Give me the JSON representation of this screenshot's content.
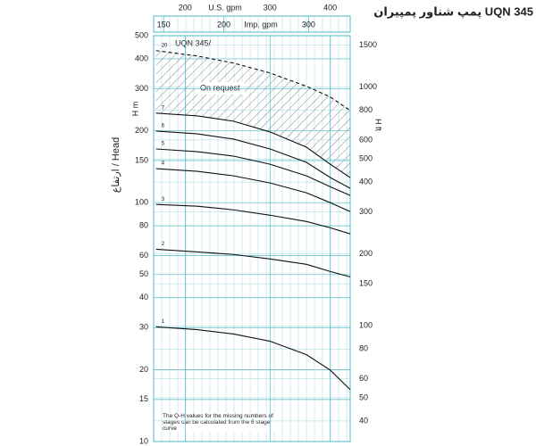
{
  "chart_data": {
    "type": "line",
    "title": "پمپ شناور پمپیران UQN 345",
    "ylabel": "ارتفاع / Head",
    "yunit": "H m",
    "y2unit": "H ft",
    "xlabel": "U.S. gpm",
    "x2label": "Imp. gpm",
    "annotations": [
      "UQN 345/",
      "On request",
      "The Q-H values for the missing numbers of stages can be calculated from the 6 stage curve"
    ],
    "xscale": "log",
    "yscale": "log",
    "grid": true,
    "xlim": [
      172,
      440
    ],
    "xticks": [
      200,
      300,
      400
    ],
    "x2lim": [
      143,
      366
    ],
    "x2ticks": [
      150,
      200,
      300
    ],
    "ylim": [
      10,
      500
    ],
    "yticks": [
      10,
      15,
      20,
      30,
      40,
      50,
      60,
      80,
      100,
      150,
      200,
      300,
      400,
      500
    ],
    "y2lim": [
      32.8,
      1640
    ],
    "y2ticks": [
      40,
      50,
      60,
      80,
      100,
      150,
      200,
      300,
      400,
      500,
      600,
      800,
      1000,
      1500
    ],
    "x": [
      174,
      212,
      252,
      300,
      357,
      400,
      440
    ],
    "series": [
      {
        "name": "1",
        "color": "#111111",
        "values": [
          30.2,
          29.4,
          28.2,
          26.3,
          23.1,
          19.9,
          16.5
        ]
      },
      {
        "name": "2",
        "color": "#111111",
        "values": [
          63.8,
          62.2,
          60.7,
          58.1,
          55.2,
          51.5,
          48.9
        ]
      },
      {
        "name": "3",
        "color": "#111111",
        "values": [
          98.3,
          96.6,
          93.3,
          88.6,
          83.4,
          78.5,
          74.0
        ]
      },
      {
        "name": "4",
        "color": "#111111",
        "values": [
          138.8,
          135.3,
          129.5,
          120.9,
          110.0,
          100,
          91.8
        ]
      },
      {
        "name": "5",
        "color": "#111111",
        "values": [
          167.8,
          163.4,
          156.6,
          144.8,
          129.5,
          116.6,
          107.2
        ]
      },
      {
        "name": "6",
        "color": "#111111",
        "values": [
          199.4,
          194.1,
          184.5,
          167.8,
          147.5,
          127.4,
          114.8
        ]
      },
      {
        "name": "7",
        "color": "#111111",
        "values": [
          237,
          230.7,
          219.3,
          197.7,
          170.7,
          144.8,
          127.4
        ]
      },
      {
        "name": "20",
        "color": "#111111",
        "dashed": true,
        "values": [
          433,
          411,
          384,
          349,
          307,
          277,
          243
        ]
      }
    ]
  }
}
